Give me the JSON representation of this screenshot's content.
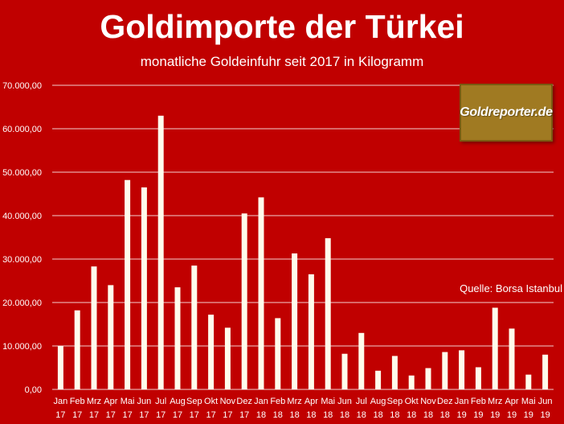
{
  "chart_data": {
    "type": "bar",
    "title": "Goldimporte der Türkei",
    "subtitle": "monatliche Goldeinfuhr seit 2017 in Kilogramm",
    "source": "Quelle: Borsa Istanbul",
    "logo": "Goldreporter.de",
    "xlabel": "",
    "ylabel": "",
    "ylim": [
      0,
      70000
    ],
    "yticks": [
      {
        "value": 0,
        "label": "0,00"
      },
      {
        "value": 10000,
        "label": "10.000,00"
      },
      {
        "value": 20000,
        "label": "20.000,00"
      },
      {
        "value": 30000,
        "label": "30.000,00"
      },
      {
        "value": 40000,
        "label": "40.000,00"
      },
      {
        "value": 50000,
        "label": "50.000,00"
      },
      {
        "value": 60000,
        "label": "60.000,00"
      },
      {
        "value": 70000,
        "label": "70.000,00"
      }
    ],
    "grid": true,
    "categories": [
      {
        "month": "Jan",
        "year": "17"
      },
      {
        "month": "Feb",
        "year": "17"
      },
      {
        "month": "Mrz",
        "year": "17"
      },
      {
        "month": "Apr",
        "year": "17"
      },
      {
        "month": "Mai",
        "year": "17"
      },
      {
        "month": "Jun",
        "year": "17"
      },
      {
        "month": "Jul",
        "year": "17"
      },
      {
        "month": "Aug",
        "year": "17"
      },
      {
        "month": "Sep",
        "year": "17"
      },
      {
        "month": "Okt",
        "year": "17"
      },
      {
        "month": "Nov",
        "year": "17"
      },
      {
        "month": "Dez",
        "year": "17"
      },
      {
        "month": "Jan",
        "year": "18"
      },
      {
        "month": "Feb",
        "year": "18"
      },
      {
        "month": "Mrz",
        "year": "18"
      },
      {
        "month": "Apr",
        "year": "18"
      },
      {
        "month": "Mai",
        "year": "18"
      },
      {
        "month": "Jun",
        "year": "18"
      },
      {
        "month": "Jul",
        "year": "18"
      },
      {
        "month": "Aug",
        "year": "18"
      },
      {
        "month": "Sep",
        "year": "18"
      },
      {
        "month": "Okt",
        "year": "18"
      },
      {
        "month": "Nov",
        "year": "18"
      },
      {
        "month": "Dez",
        "year": "18"
      },
      {
        "month": "Jan",
        "year": "19"
      },
      {
        "month": "Feb",
        "year": "19"
      },
      {
        "month": "Mrz",
        "year": "19"
      },
      {
        "month": "Apr",
        "year": "19"
      },
      {
        "month": "Mai",
        "year": "19"
      },
      {
        "month": "Jun",
        "year": "19"
      }
    ],
    "values": [
      10000,
      18200,
      28300,
      24000,
      48200,
      46500,
      63000,
      23500,
      28500,
      17200,
      14200,
      40500,
      44200,
      16400,
      31300,
      26500,
      34800,
      8200,
      13000,
      4300,
      7700,
      3200,
      4900,
      8600,
      9000,
      5100,
      18800,
      14000,
      3400,
      8000
    ],
    "colors": {
      "background": "#c00000",
      "bar": "#fffcec",
      "grid": "#f2d0d0",
      "text": "#ffffff",
      "logo_bg": "#a07a22"
    }
  }
}
